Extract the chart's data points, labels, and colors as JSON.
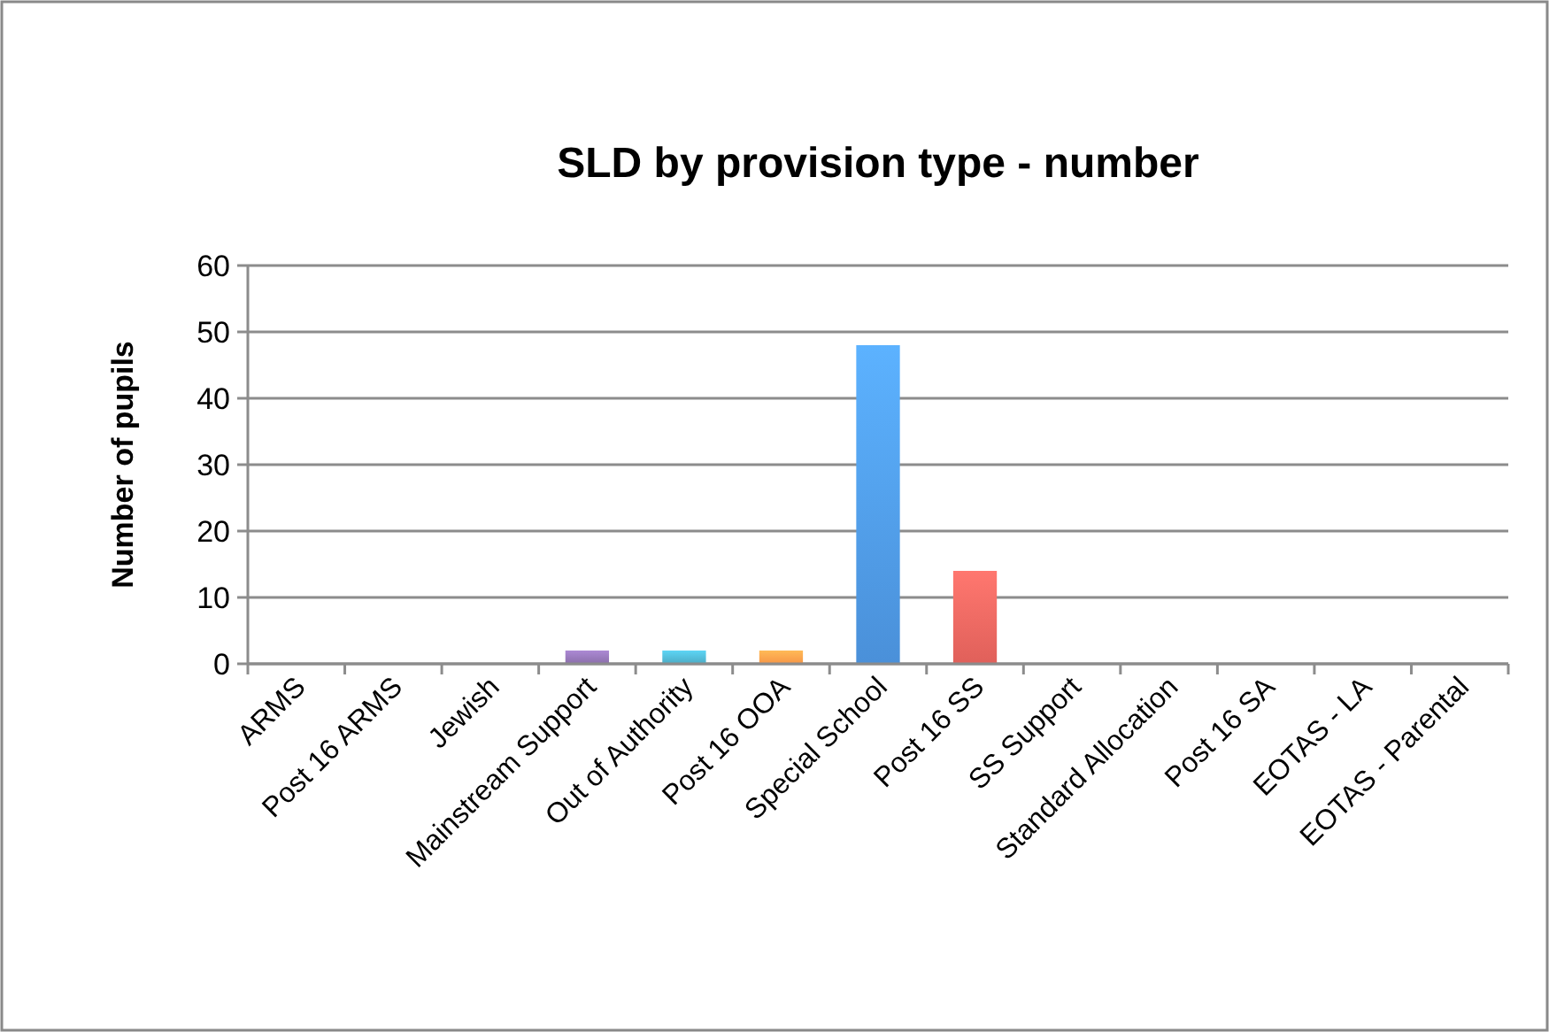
{
  "chart_data": {
    "type": "bar",
    "title": "SLD by provision type - number",
    "ylabel": "Number of pupils",
    "categories": [
      "ARMS",
      "Post 16 ARMS",
      "Jewish",
      "Mainstream Support",
      "Out of Authority",
      "Post 16 OOA",
      "Special School",
      "Post 16 SS",
      "SS Support",
      "Standard Allocation",
      "Post 16 SA",
      "EOTAS - LA",
      "EOTAS - Parental"
    ],
    "values": [
      0,
      0,
      0,
      2,
      2,
      2,
      48,
      14,
      0,
      0,
      0,
      0,
      0
    ],
    "colors": [
      "#4a7ebb",
      "#be4b48",
      "#98b954",
      "#8b6fab",
      "#4bacc6",
      "#f79646",
      "#4a90d9",
      "#e0605a",
      "#98b954",
      "#8b6fab",
      "#4bacc6",
      "#f79646",
      "#4a7ebb"
    ],
    "ylim": [
      0,
      60
    ],
    "yticks": [
      0,
      10,
      20,
      30,
      40,
      50,
      60
    ],
    "grid": "y"
  }
}
